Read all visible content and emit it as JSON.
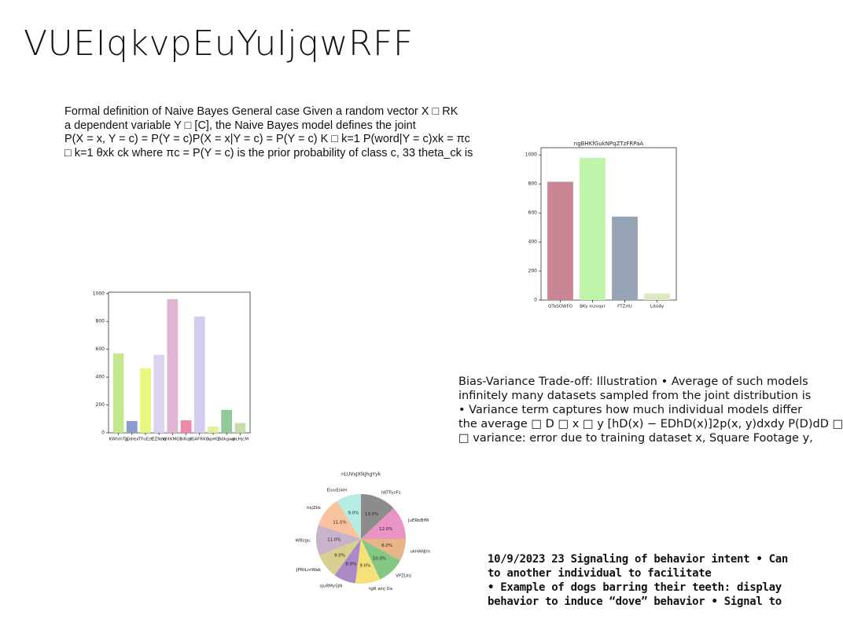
{
  "title": "VUEIqkvpEuYuIjqwRFF",
  "paragraphs": [
    [
      "Formal definition of Naive Bayes General case Given a random vector X □ RK",
      "a dependent variable Y □ [C], the Naive Bayes model defines the joint",
      "P(X = x, Y = c) = P(Y = c)P(X = x|Y = c) = P(Y = c) K □ k=1 P(word|Y = c)xk = πc",
      "□ k=1 θxk ck where πc = P(Y = c) is the prior probability of class c, 33 theta_ck is"
    ],
    [
      "Bias-Variance Trade-off: Illustration • Average of such models",
      "infinitely many datasets sampled from the joint distribution is",
      "• Variance term captures how much individual models differ",
      "the average □ D □ x □ y [hD(x) − EDhD(x)]2p(x, y)dxdy P(D)dD □",
      "□ variance: error due to training dataset x, Square Footage y,"
    ],
    [
      "10/9/2023 23 Signaling of behavior intent • Can",
      "to another individual to facilitate",
      "• Example of dogs barring their teeth: display",
      "behavior to induce “dove” behavior • Signal to"
    ]
  ],
  "chart_data": [
    {
      "type": "bar",
      "title": "ngBHKfGukNPqZTzFRPaA",
      "categories": [
        "QTaSOWFO",
        "BKy mzvqxr",
        "FTZrtU",
        "LdsiAy"
      ],
      "values": [
        815,
        980,
        575,
        45
      ],
      "colors": [
        "#c98593",
        "#bff5a8",
        "#96a3b5",
        "#dbe8c0"
      ],
      "ylim": [
        0,
        1050
      ],
      "yticks": [
        0,
        200,
        400,
        600,
        800,
        1000
      ]
    },
    {
      "type": "bar",
      "categories": [
        "KWhihTg",
        "jQdlex",
        "TFoEzt",
        "EZNbq",
        "WXKMGb",
        "fnKqH",
        "jGAFRKG",
        "npHQ",
        "Bdkgwp",
        "alcHjcM"
      ],
      "values": [
        570,
        85,
        465,
        560,
        960,
        90,
        835,
        45,
        165,
        70
      ],
      "colors": [
        "#c5e88f",
        "#8d9ccf",
        "#eaf77f",
        "#dcd4ef",
        "#e0b4d3",
        "#ee8aa9",
        "#d4ccf0",
        "#e6ee9c",
        "#92c99a",
        "#c5dca8"
      ],
      "ylim": [
        0,
        1010
      ],
      "yticks": [
        0,
        200,
        400,
        600,
        800,
        1000
      ]
    },
    {
      "type": "pie",
      "title": "nLUVxJXlkJhgYyk",
      "categories": [
        "hKTFysFs",
        "juERbBfM",
        "ukHANJm",
        "VPZUnj",
        "tgR wnj Da",
        "sJuRMySjN",
        "JPRtLntWak",
        "WBzgu",
        "hsjZkk",
        "EiuvEskH"
      ],
      "values": [
        13,
        12,
        8,
        10,
        9,
        8,
        9,
        11,
        11,
        9
      ],
      "value_labels": [
        "13.0%",
        "12.0%",
        "8.0%",
        "10.0%",
        "9.0%",
        "8.0%",
        "9.0%",
        "11.0%",
        "11.0%",
        "9.0%"
      ],
      "colors": [
        "#8c8c8c",
        "#e994c3",
        "#e8b48a",
        "#82c882",
        "#f6e07a",
        "#a98ac7",
        "#d8d08e",
        "#c9b3cc",
        "#f9c39f",
        "#b5ece4"
      ]
    }
  ]
}
